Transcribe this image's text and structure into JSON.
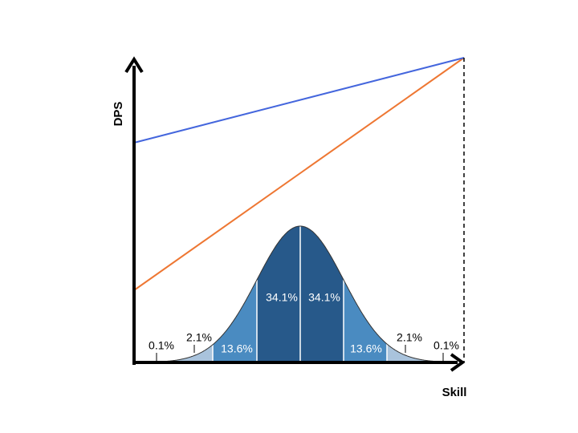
{
  "axes": {
    "y_label": "DPS",
    "x_label": "Skill"
  },
  "distribution": {
    "labels": [
      "0.1%",
      "2.1%",
      "13.6%",
      "34.1%",
      "34.1%",
      "13.6%",
      "2.1%",
      "0.1%"
    ]
  }
}
